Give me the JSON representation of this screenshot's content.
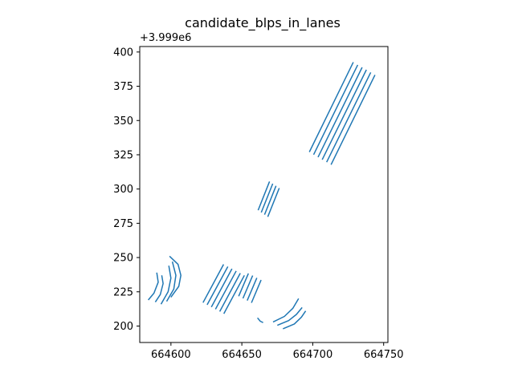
{
  "chart_data": {
    "type": "line",
    "title": "candidate_blps_in_lanes",
    "xlabel": "",
    "ylabel": "",
    "y_offset_label": "+3.999e6",
    "xlim": [
      664578,
      664753
    ],
    "ylim": [
      188,
      404
    ],
    "x_ticks": [
      664600,
      664650,
      664700,
      664750
    ],
    "x_tick_labels": [
      "664600",
      "664650",
      "664700",
      "664750"
    ],
    "y_ticks": [
      200,
      225,
      250,
      275,
      300,
      325,
      350,
      375,
      400
    ],
    "y_tick_labels": [
      "200",
      "225",
      "250",
      "275",
      "300",
      "325",
      "350",
      "375",
      "400"
    ],
    "grid": false,
    "legend": "none",
    "color": "#1f77b4",
    "series": [
      {
        "x": [
          664697.6,
          664728.6
        ],
        "y": [
          327.0,
          392.5
        ]
      },
      {
        "x": [
          664700.6,
          664731.7
        ],
        "y": [
          325.1,
          390.6
        ]
      },
      {
        "x": [
          664703.7,
          664734.8
        ],
        "y": [
          323.3,
          388.8
        ]
      },
      {
        "x": [
          664706.7,
          664737.8
        ],
        "y": [
          321.4,
          387.0
        ]
      },
      {
        "x": [
          664709.8,
          664740.9
        ],
        "y": [
          319.6,
          385.1
        ]
      },
      {
        "x": [
          664712.9,
          664743.9
        ],
        "y": [
          317.8,
          383.3
        ]
      },
      {
        "x": [
          664661.5,
          664669.5
        ],
        "y": [
          284.5,
          305.5
        ]
      },
      {
        "x": [
          664663.7,
          664671.8
        ],
        "y": [
          282.9,
          303.9
        ]
      },
      {
        "x": [
          664666.0,
          664674.1
        ],
        "y": [
          281.3,
          302.3
        ]
      },
      {
        "x": [
          664668.3,
          664676.4
        ],
        "y": [
          279.7,
          300.7
        ]
      },
      {
        "x": [
          664622.6,
          664637.1
        ],
        "y": [
          217.1,
          245.0
        ]
      },
      {
        "x": [
          664625.5,
          664640.1
        ],
        "y": [
          215.5,
          243.4
        ]
      },
      {
        "x": [
          664628.5,
          664643.0
        ],
        "y": [
          213.9,
          241.8
        ]
      },
      {
        "x": [
          664631.4,
          664646.0
        ],
        "y": [
          212.3,
          240.2
        ]
      },
      {
        "x": [
          664634.4,
          664648.9
        ],
        "y": [
          210.6,
          238.6
        ]
      },
      {
        "x": [
          664637.3,
          664651.8
        ],
        "y": [
          209.0,
          237.0
        ]
      },
      {
        "x": [
          664647.8,
          664654.6
        ],
        "y": [
          221.8,
          238.4
        ]
      },
      {
        "x": [
          664650.8,
          664657.6
        ],
        "y": [
          220.2,
          236.8
        ]
      },
      {
        "x": [
          664653.8,
          664660.6
        ],
        "y": [
          218.6,
          235.2
        ]
      },
      {
        "x": [
          664656.8,
          664663.6
        ],
        "y": [
          217.0,
          233.6
        ]
      },
      {
        "x": [
          664584.0,
          664588.0,
          664591.0,
          664590.0
        ],
        "y": [
          219.0,
          224.0,
          232.0,
          239.0
        ]
      },
      {
        "x": [
          664589.0,
          664592.5,
          664594.5,
          664593.5
        ],
        "y": [
          217.5,
          223.0,
          231.0,
          237.0
        ]
      },
      {
        "x": [
          664593.0,
          664598.0,
          664600.0,
          664598.5
        ],
        "y": [
          216.0,
          225.0,
          235.0,
          244.0
        ]
      },
      {
        "x": [
          664597.0,
          664602.0,
          664603.5,
          664601.0
        ],
        "y": [
          218.0,
          227.0,
          237.0,
          247.0
        ]
      },
      {
        "x": [
          664600.0,
          664605.5,
          664607.0,
          664605.0,
          664599.0
        ],
        "y": [
          221.0,
          229.0,
          237.0,
          245.0,
          251.0
        ]
      },
      {
        "x": [
          664661.0,
          664663.0,
          664665.0
        ],
        "y": [
          206.0,
          203.5,
          202.5
        ]
      },
      {
        "x": [
          664672.0,
          664680.0,
          664686.0,
          664690.0
        ],
        "y": [
          203.0,
          207.0,
          213.0,
          220.0
        ]
      },
      {
        "x": [
          664675.0,
          664683.0,
          664688.5,
          664692.5
        ],
        "y": [
          200.5,
          204.0,
          208.5,
          213.5
        ]
      },
      {
        "x": [
          664679.0,
          664687.0,
          664692.0,
          664695.0
        ],
        "y": [
          198.0,
          201.5,
          206.5,
          211.0
        ]
      }
    ]
  }
}
